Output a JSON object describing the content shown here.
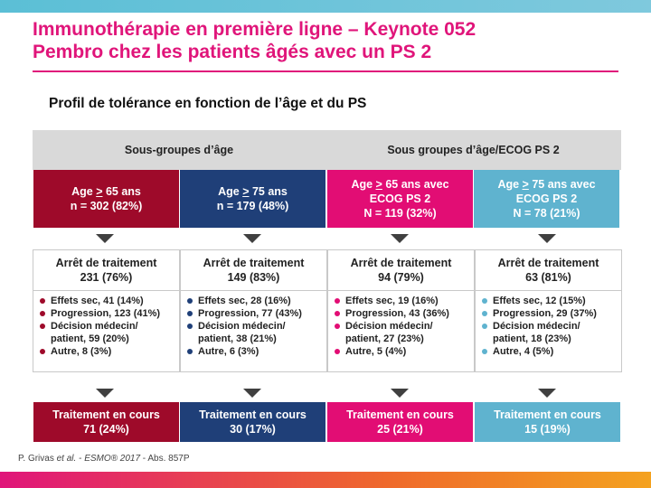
{
  "colors": {
    "accent": "#e0157a",
    "group1": "#9e0a2a",
    "group2": "#1f3f78",
    "group3": "#e20d74",
    "group4": "#5fb3cf"
  },
  "title": {
    "line1": "Immunothérapie en première ligne – Keynote 052",
    "line2": "Pembro chez les patients âgés avec un PS 2"
  },
  "subtitle": "Profil de tolérance en fonction de l’âge et du PS",
  "headers": [
    "Sous-groupes d’âge",
    "Sous groupes d’âge/ECOG PS 2"
  ],
  "groups": [
    {
      "cmp": ">",
      "rest": " 65 ans",
      "prefix": "Age ",
      "line2": "",
      "n": "n = 302 (82%)"
    },
    {
      "cmp": ">",
      "rest": " 75 ans",
      "prefix": "Age ",
      "line2": "",
      "n": "n = 179 (48%)"
    },
    {
      "cmp": ">",
      "rest": " 65 ans avec",
      "prefix": "Age ",
      "line2": "ECOG PS 2",
      "n": "N = 119 (32%)"
    },
    {
      "cmp": ">",
      "rest": " 75 ans avec",
      "prefix": "Age ",
      "line2": "ECOG PS 2",
      "n": "N = 78 (21%)"
    }
  ],
  "stops": [
    {
      "label": "Arrêt de traitement",
      "value": "231 (76%)",
      "items": [
        "Effets sec, 41 (14%)",
        "Progression, 123 (41%)",
        "Décision médecin/ patient, 59 (20%)",
        "Autre, 8 (3%)"
      ]
    },
    {
      "label": "Arrêt de traitement",
      "value": "149 (83%)",
      "items": [
        "Effets sec, 28 (16%)",
        "Progression, 77 (43%)",
        "Décision médecin/ patient, 38 (21%)",
        "Autre, 6 (3%)"
      ]
    },
    {
      "label": "Arrêt de traitement",
      "value": "94 (79%)",
      "items": [
        "Effets sec, 19 (16%)",
        "Progression, 43 (36%)",
        "Décision médecin/ patient, 27 (23%)",
        "Autre, 5 (4%)"
      ]
    },
    {
      "label": "Arrêt de traitement",
      "value": "63 (81%)",
      "items": [
        "Effets sec, 12 (15%)",
        "Progression, 29 (37%)",
        "Décision médecin/ patient, 18 (23%)",
        "Autre, 4 (5%)"
      ]
    }
  ],
  "ongoing": [
    {
      "label": "Traitement en cours",
      "value": "71 (24%)"
    },
    {
      "label": "Traitement en cours",
      "value": "30 (17%)"
    },
    {
      "label": "Traitement en cours",
      "value": "25 (21%)"
    },
    {
      "label": "Traitement en cours",
      "value": "15 (19%)"
    }
  ],
  "citation": {
    "author": "P. Grivas ",
    "etal": "et al.",
    "dash": " - ",
    "journal": "ESMO® 2017",
    "abs": " - Abs. 857P"
  }
}
